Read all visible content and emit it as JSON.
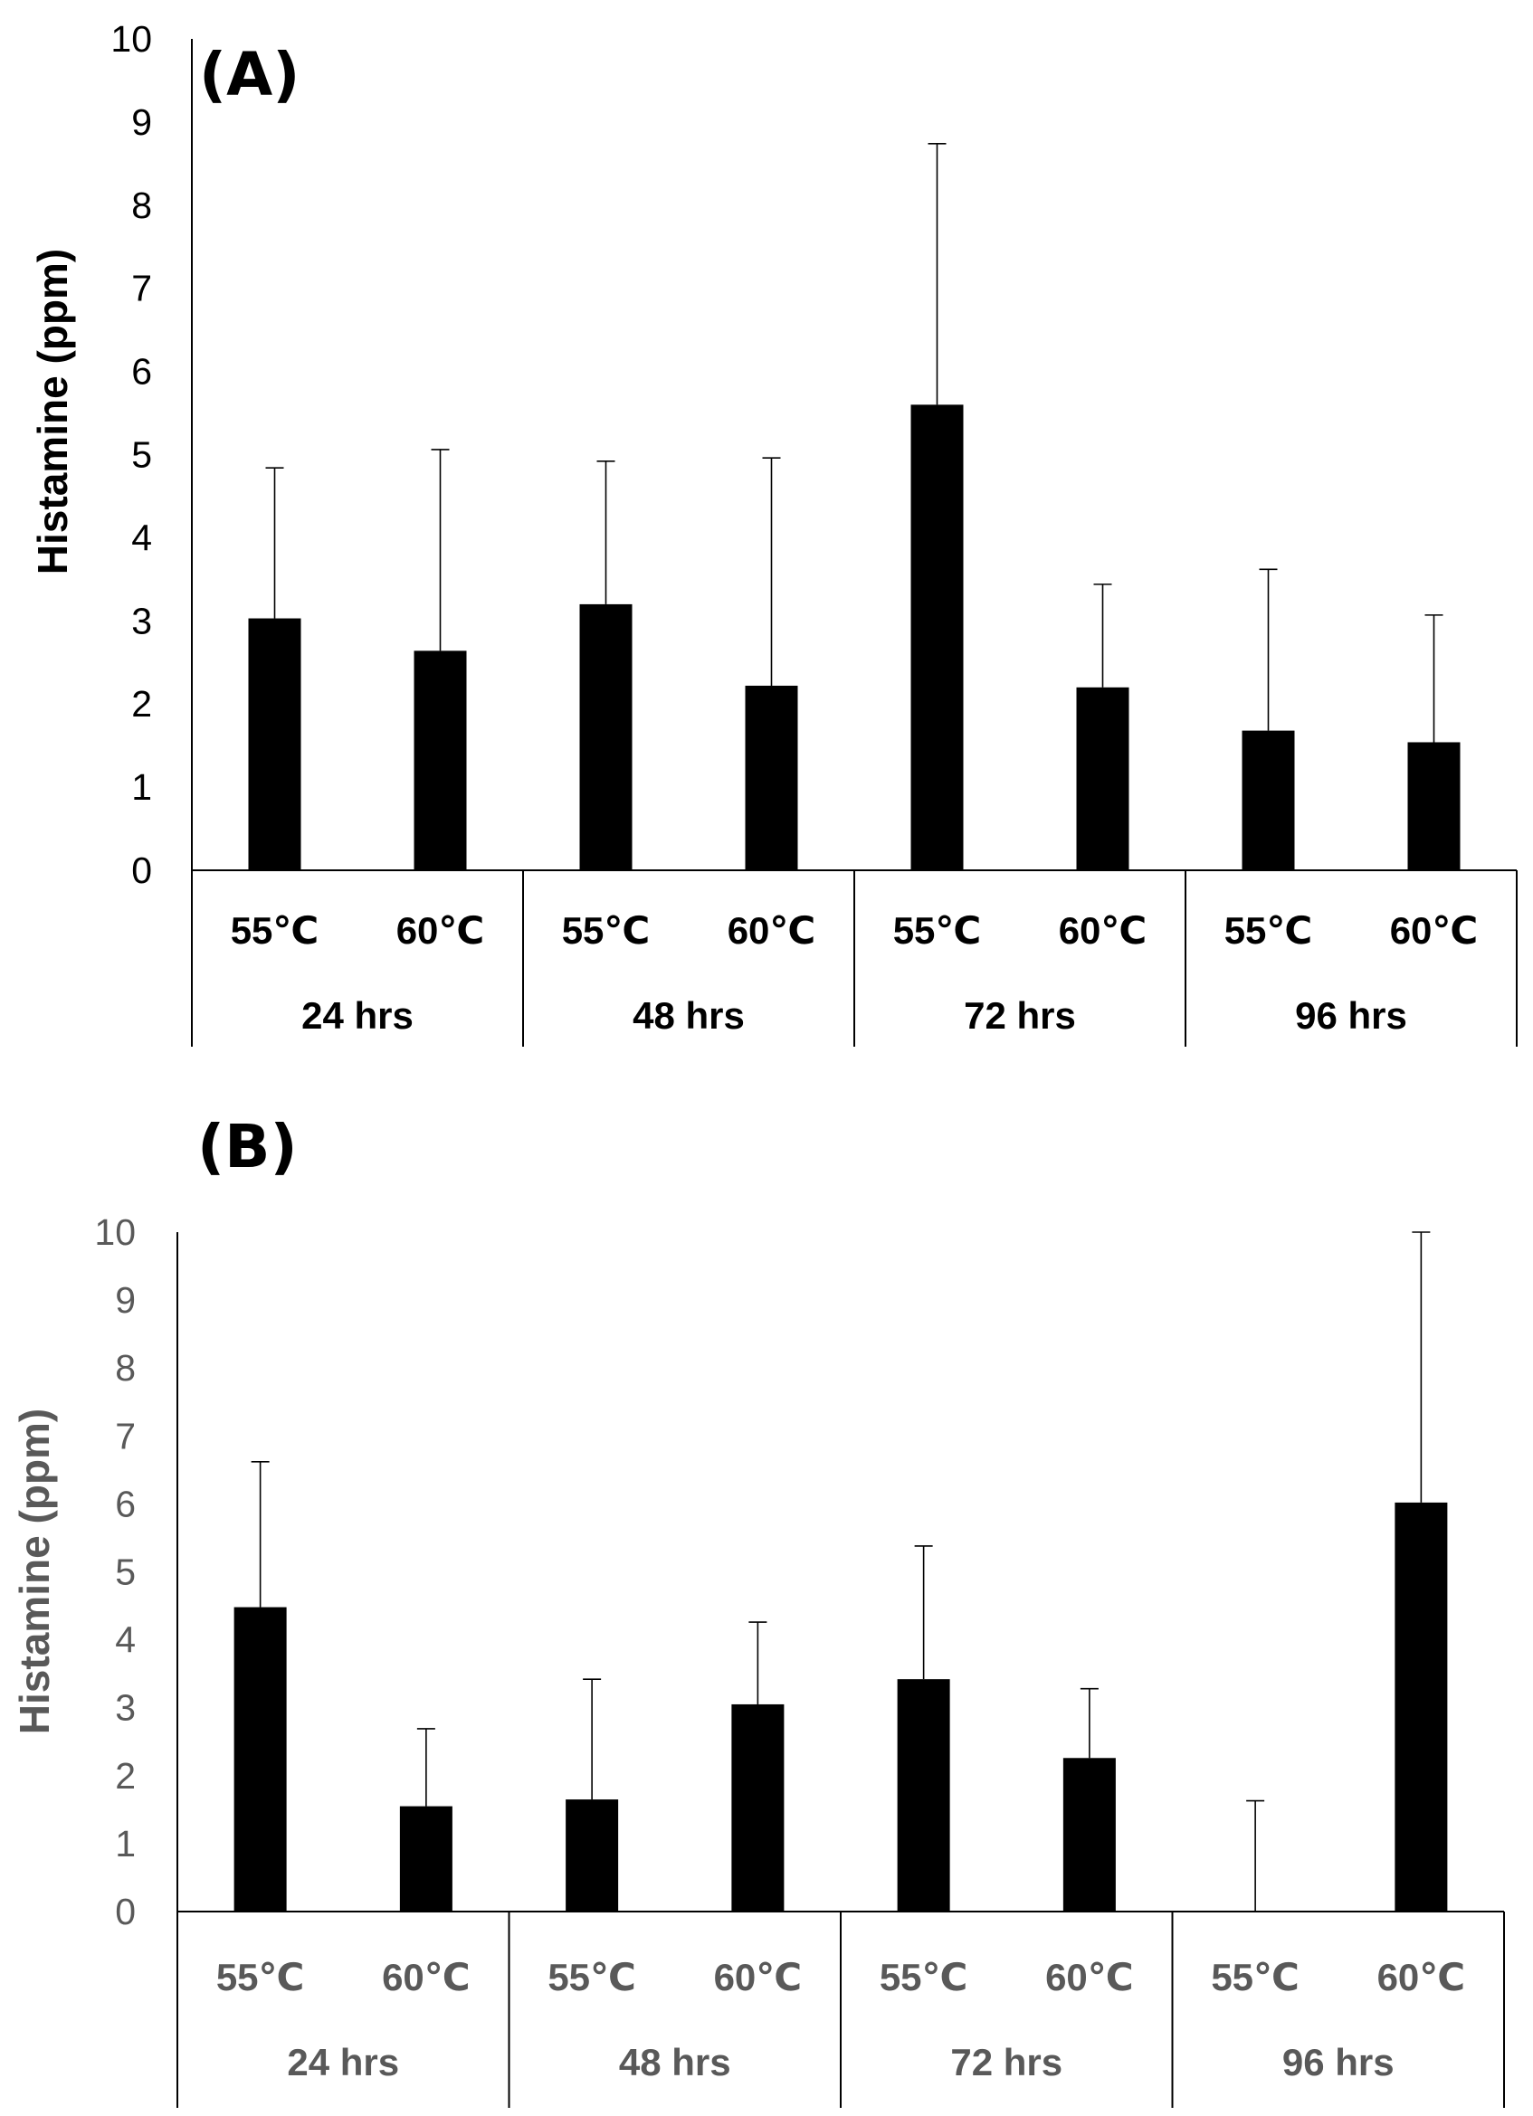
{
  "chart_data": [
    {
      "panel_label": "(A)",
      "type": "bar",
      "ylabel": "Histamine (ppm)",
      "ylim": [
        0,
        10
      ],
      "yticks": [
        "0",
        "1",
        "2",
        "3",
        "4",
        "5",
        "6",
        "7",
        "8",
        "9",
        "10"
      ],
      "categories": [
        "55℃",
        "60℃",
        "55℃",
        "60℃",
        "55℃",
        "60℃",
        "55℃",
        "60℃"
      ],
      "groups": [
        "24 hrs",
        "48 hrs",
        "72 hrs",
        "96 hrs"
      ],
      "values": [
        3.03,
        2.64,
        3.2,
        2.22,
        5.6,
        2.2,
        1.68,
        1.54
      ],
      "error_upper": [
        4.84,
        5.06,
        4.92,
        4.96,
        8.74,
        3.44,
        3.62,
        3.07
      ],
      "bar_color": "#000000",
      "text_color": "#000000",
      "grid": false
    },
    {
      "panel_label": "(B)",
      "type": "bar",
      "ylabel": "Histamine (ppm)",
      "ylim": [
        0,
        10
      ],
      "yticks": [
        "0",
        "1",
        "2",
        "3",
        "4",
        "5",
        "6",
        "7",
        "8",
        "9",
        "10"
      ],
      "categories": [
        "55℃",
        "60℃",
        "55℃",
        "60℃",
        "55℃",
        "60℃",
        "55℃",
        "60℃"
      ],
      "groups": [
        "24 hrs",
        "48 hrs",
        "72 hrs",
        "96 hrs"
      ],
      "values": [
        4.48,
        1.55,
        1.65,
        3.05,
        3.42,
        2.26,
        0,
        6.02
      ],
      "error_upper": [
        6.62,
        2.69,
        3.42,
        4.26,
        5.38,
        3.28,
        1.63,
        10.0
      ],
      "bar_color": "#000000",
      "text_color": "#595959",
      "grid": false
    }
  ]
}
